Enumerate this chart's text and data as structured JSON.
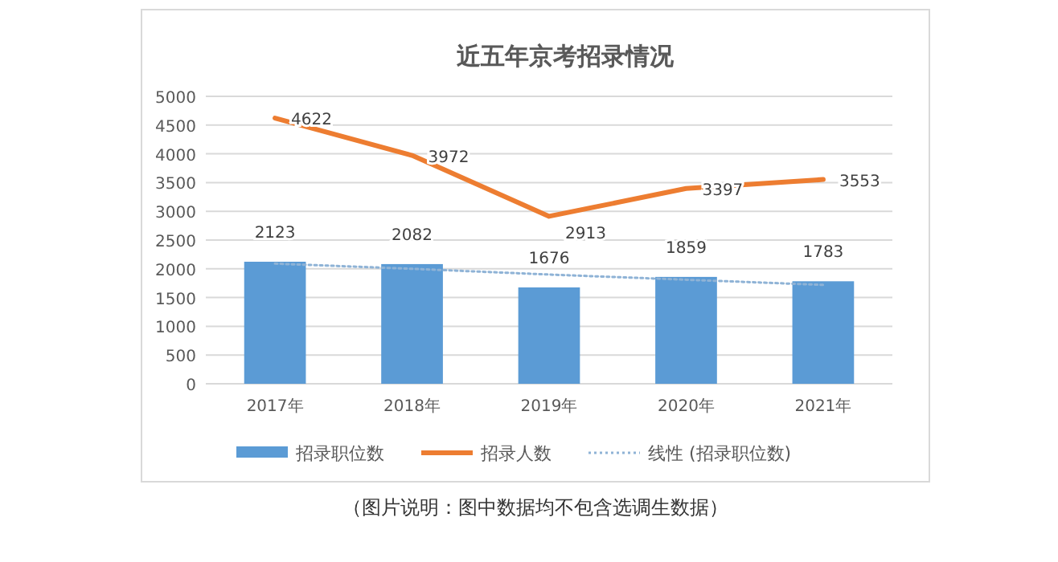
{
  "chart_data": {
    "type": "bar",
    "title": "近五年京考招录情况",
    "categories": [
      "2017年",
      "2018年",
      "2019年",
      "2020年",
      "2021年"
    ],
    "series": [
      {
        "name": "招录职位数",
        "color": "#5b9bd5",
        "values": [
          2123,
          2082,
          1676,
          1859,
          1783
        ],
        "value_labels": [
          "2123",
          "2082",
          "1676",
          "1859",
          "1783"
        ]
      },
      {
        "name": "招录人数",
        "type": "line",
        "color": "#ed7d31",
        "values": [
          4622,
          3972,
          2913,
          3397,
          3553
        ],
        "value_labels": [
          "4622",
          "3972",
          "2913",
          "3397",
          "3553"
        ]
      },
      {
        "name": "线性 (招录职位数)",
        "type": "line",
        "line_style": "dotted",
        "color": "#8fb3d6",
        "values": [
          2090,
          2000,
          1900,
          1810,
          1720
        ]
      }
    ],
    "ylim": [
      0,
      5000
    ],
    "yticks": [
      0,
      500,
      1000,
      1500,
      2000,
      2500,
      3000,
      3500,
      4000,
      4500,
      5000
    ],
    "grid": "y",
    "legend": "bottom",
    "marker": "none",
    "annotations": [
      "（图片说明：图中数据均不包含选调生数据）"
    ]
  }
}
